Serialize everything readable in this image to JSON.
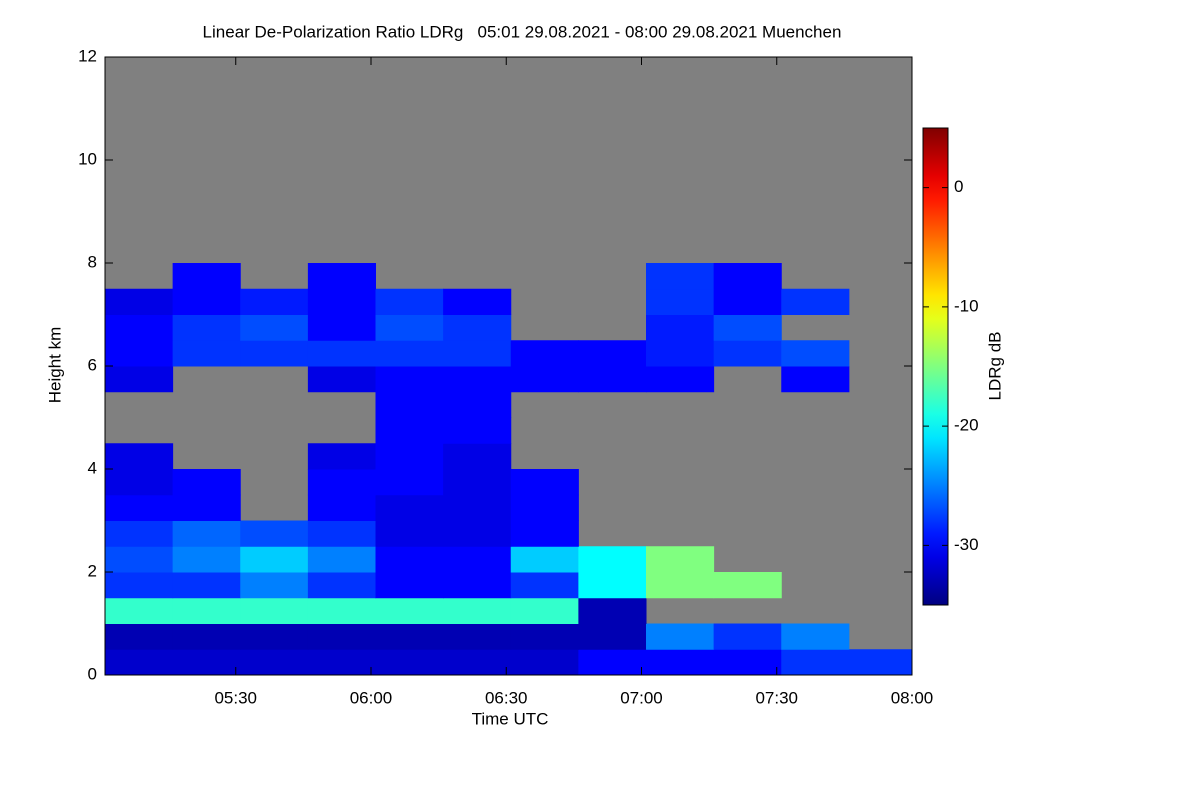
{
  "chart_data": {
    "type": "heatmap",
    "title": "Linear De-Polarization Ratio LDRg   05:01 29.08.2021 - 08:00 29.08.2021 Muenchen",
    "x_label": "Time UTC",
    "y_label": "Height km",
    "colorbar_label": "LDRg dB",
    "colormap": "jet",
    "missing_color": "#808080",
    "xlim": [
      301,
      480
    ],
    "xticks": [
      {
        "value": 330,
        "label": "05:30"
      },
      {
        "value": 360,
        "label": "06:00"
      },
      {
        "value": 390,
        "label": "06:30"
      },
      {
        "value": 420,
        "label": "07:00"
      },
      {
        "value": 450,
        "label": "07:30"
      },
      {
        "value": 480,
        "label": "08:00"
      }
    ],
    "ylim": [
      0,
      12
    ],
    "yticks": [
      0,
      2,
      4,
      6,
      8,
      10,
      12
    ],
    "zlim": [
      -35,
      5
    ],
    "zticks": [
      0,
      -10,
      -20,
      -30
    ],
    "xbins": [
      301,
      316,
      331,
      346,
      361,
      376,
      391,
      406,
      421,
      436,
      451,
      466,
      480
    ],
    "ybins": [
      0,
      0.5,
      1,
      1.5,
      2,
      2.5,
      3,
      3.5,
      4,
      4.5,
      5,
      5.5,
      6,
      6.5,
      7,
      7.5,
      8
    ],
    "z": [
      [
        -32,
        -32,
        -32,
        -32,
        -32,
        -32,
        -32,
        -30,
        -30,
        -30,
        -28,
        -28
      ],
      [
        -33,
        -33,
        -33,
        -33,
        -33,
        -33,
        -33,
        -33,
        -25,
        -28,
        -25,
        null
      ],
      [
        -18,
        -18,
        -18,
        -18,
        -18,
        -18,
        -18,
        -33,
        null,
        null,
        null,
        null
      ],
      [
        -28,
        -28,
        -25,
        -28,
        -30,
        -30,
        -28,
        -20,
        -15,
        -15,
        null,
        null
      ],
      [
        -27,
        -25,
        -22,
        -25,
        -30,
        -30,
        -22,
        -20,
        -15,
        null,
        null,
        null
      ],
      [
        -28,
        -26,
        -27,
        -28,
        -31,
        -31,
        -30,
        null,
        null,
        null,
        null,
        null
      ],
      [
        -30,
        -30,
        null,
        -30,
        -31,
        -31,
        -30,
        null,
        null,
        null,
        null,
        null
      ],
      [
        -31,
        -30,
        null,
        -30,
        -30,
        -31,
        -30,
        null,
        null,
        null,
        null,
        null
      ],
      [
        -31,
        null,
        null,
        -31,
        -30,
        -31,
        null,
        null,
        null,
        null,
        null,
        null
      ],
      [
        null,
        null,
        null,
        null,
        -30,
        -30,
        null,
        null,
        null,
        null,
        null,
        null
      ],
      [
        null,
        null,
        null,
        null,
        -30,
        -30,
        null,
        null,
        null,
        null,
        null,
        null
      ],
      [
        -31,
        null,
        null,
        -31,
        -30,
        -30,
        -30,
        -30,
        -30,
        null,
        -30,
        null
      ],
      [
        -30,
        -28,
        -28,
        -28,
        -28,
        -28,
        -30,
        -30,
        -29,
        -28,
        -27,
        null
      ],
      [
        -30,
        -28,
        -27,
        -30,
        -27,
        -28,
        null,
        null,
        -29,
        -27,
        null,
        null
      ],
      [
        -31,
        -30,
        -29,
        -30,
        -28,
        -30,
        null,
        null,
        -28,
        -30,
        -28,
        null
      ],
      [
        null,
        -30,
        null,
        -30,
        null,
        null,
        null,
        null,
        -28,
        -30,
        null,
        null
      ]
    ]
  }
}
